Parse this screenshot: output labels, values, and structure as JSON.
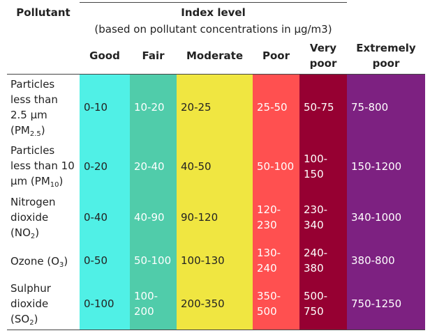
{
  "header": {
    "pollutant": "Pollutant",
    "index_level": "Index level",
    "index_note": "(based on pollutant concentrations in µg/m3)",
    "levels": [
      "Good",
      "Fair",
      "Moderate",
      "Poor",
      "Very poor",
      "Extremely poor"
    ]
  },
  "colors": {
    "good": "#50f0e6",
    "fair": "#50ccaa",
    "moderate": "#f0e641",
    "poor": "#ff5050",
    "very_poor": "#960032",
    "extremely_poor": "#7d2181"
  },
  "rows": [
    {
      "label": "Particles less than 2.5 µm (PM2.5)",
      "label_main": "Particles less than 2.5 µm (PM",
      "label_sub": "2.5",
      "label_end": ")",
      "values": [
        "0-10",
        "10-20",
        "20-25",
        "25-50",
        "50-75",
        "75-800"
      ]
    },
    {
      "label": "Particles less than 10 µm (PM10)",
      "label_main": "Particles less than 10 µm (PM",
      "label_sub": "10",
      "label_end": ")",
      "values": [
        "0-20",
        "20-40",
        "40-50",
        "50-100",
        "100-150",
        "150-1200"
      ]
    },
    {
      "label": "Nitrogen dioxide (NO2)",
      "label_main": "Nitrogen dioxide (NO",
      "label_sub": "2",
      "label_end": ")",
      "values": [
        "0-40",
        "40-90",
        "90-120",
        "120-230",
        "230-340",
        "340-1000"
      ]
    },
    {
      "label": "Ozone (O3)",
      "label_main": "Ozone (O",
      "label_sub": "3",
      "label_end": ")",
      "values": [
        "0-50",
        "50-100",
        "100-130",
        "130-240",
        "240-380",
        "380-800"
      ]
    },
    {
      "label": "Sulphur dioxide (SO2)",
      "label_main": "Sulphur dioxide (SO",
      "label_sub": "2",
      "label_end": ")",
      "values": [
        "0-100",
        "100-200",
        "200-350",
        "350-500",
        "500-750",
        "750-1250"
      ]
    }
  ]
}
